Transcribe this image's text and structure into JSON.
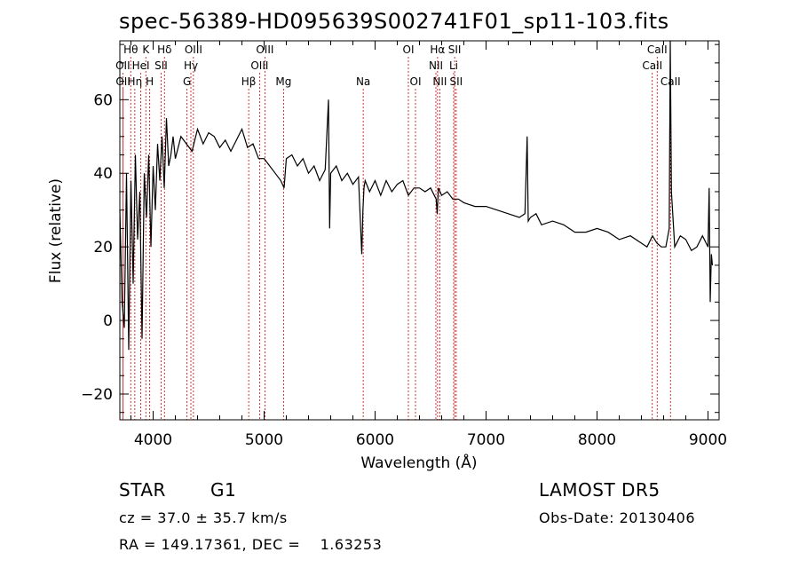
{
  "title": "spec-56389-HD095639S002741F01_sp11-103.fits",
  "info": {
    "class": "STAR",
    "subclass": "G1",
    "cz": "cz = 37.0 ± 35.7 km/s",
    "coords": "RA = 149.17361, DEC =    1.63253",
    "survey": "LAMOST DR5",
    "obs_date": "Obs-Date: 20130406"
  },
  "chart_data": {
    "type": "line",
    "title": "spec-56389-HD095639S002741F01_sp11-103.fits",
    "xlabel": "Wavelength (Å)",
    "ylabel": "Flux (relative)",
    "xlim": [
      3700,
      9100
    ],
    "ylim": [
      -27,
      76
    ],
    "x_ticks": [
      4000,
      5000,
      6000,
      7000,
      8000,
      9000
    ],
    "y_ticks": [
      -20,
      0,
      20,
      40,
      60
    ],
    "grid": false,
    "line_color": "#000000",
    "marker_color": "#cc0000",
    "spectrum": {
      "x": [
        3700,
        3720,
        3740,
        3760,
        3780,
        3800,
        3820,
        3840,
        3860,
        3880,
        3900,
        3920,
        3940,
        3960,
        3980,
        4000,
        4020,
        4040,
        4060,
        4080,
        4100,
        4120,
        4140,
        4160,
        4180,
        4200,
        4250,
        4300,
        4350,
        4400,
        4450,
        4500,
        4550,
        4600,
        4650,
        4700,
        4750,
        4800,
        4850,
        4900,
        4950,
        5000,
        5050,
        5100,
        5150,
        5180,
        5200,
        5250,
        5300,
        5350,
        5400,
        5450,
        5500,
        5550,
        5580,
        5590,
        5600,
        5650,
        5700,
        5750,
        5800,
        5850,
        5880,
        5890,
        5900,
        5910,
        5950,
        6000,
        6050,
        6100,
        6150,
        6200,
        6250,
        6300,
        6350,
        6400,
        6450,
        6500,
        6550,
        6560,
        6570,
        6600,
        6650,
        6700,
        6750,
        6800,
        6900,
        7000,
        7100,
        7200,
        7300,
        7350,
        7370,
        7380,
        7400,
        7450,
        7500,
        7600,
        7700,
        7800,
        7900,
        8000,
        8100,
        8200,
        8300,
        8400,
        8450,
        8500,
        8540,
        8580,
        8620,
        8650,
        8660,
        8670,
        8700,
        8750,
        8800,
        8850,
        8900,
        8950,
        9000,
        9010,
        9020,
        9030,
        9040
      ],
      "y": [
        30,
        5,
        -2,
        40,
        -8,
        38,
        10,
        45,
        22,
        35,
        -5,
        40,
        28,
        45,
        20,
        42,
        30,
        48,
        38,
        50,
        36,
        55,
        42,
        45,
        50,
        44,
        50,
        48,
        46,
        52,
        48,
        51,
        50,
        47,
        49,
        46,
        49,
        52,
        47,
        48,
        44,
        44,
        42,
        40,
        38,
        36,
        44,
        45,
        42,
        44,
        40,
        42,
        38,
        41,
        60,
        25,
        40,
        42,
        38,
        40,
        37,
        39,
        18,
        30,
        36,
        38,
        35,
        38,
        34,
        38,
        35,
        37,
        38,
        34,
        36,
        36,
        35,
        36,
        33,
        29,
        36,
        34,
        35,
        33,
        33,
        32,
        31,
        31,
        30,
        29,
        28,
        29,
        50,
        27,
        28,
        29,
        26,
        27,
        26,
        24,
        24,
        25,
        24,
        22,
        23,
        21,
        20,
        23,
        21,
        20,
        20,
        25,
        78,
        35,
        20,
        23,
        22,
        19,
        20,
        23,
        20,
        36,
        5,
        18,
        15
      ]
    },
    "lines": [
      {
        "name": "Hθ",
        "wave": 3798,
        "row": 0
      },
      {
        "name": "K",
        "wave": 3934,
        "row": 0
      },
      {
        "name": "Hδ",
        "wave": 4102,
        "row": 0
      },
      {
        "name": "OIII",
        "wave": 4363,
        "row": 0
      },
      {
        "name": "OIII",
        "wave": 5007,
        "row": 0
      },
      {
        "name": "OI",
        "wave": 6300,
        "row": 0
      },
      {
        "name": "Hα",
        "wave": 6563,
        "row": 0
      },
      {
        "name": "SII",
        "wave": 6717,
        "row": 0
      },
      {
        "name": "CaII",
        "wave": 8542,
        "row": 0
      },
      {
        "name": "OII",
        "wave": 3727,
        "row": 1
      },
      {
        "name": "HeI",
        "wave": 3889,
        "row": 1
      },
      {
        "name": "SII",
        "wave": 4072,
        "row": 1
      },
      {
        "name": "Hγ",
        "wave": 4340,
        "row": 1
      },
      {
        "name": "OIII",
        "wave": 4959,
        "row": 1
      },
      {
        "name": "NII",
        "wave": 6548,
        "row": 1
      },
      {
        "name": "Li",
        "wave": 6708,
        "row": 1
      },
      {
        "name": "CaII",
        "wave": 8498,
        "row": 1
      },
      {
        "name": "OII",
        "wave": 3729,
        "row": 2
      },
      {
        "name": "Hη",
        "wave": 3835,
        "row": 2
      },
      {
        "name": "H",
        "wave": 3969,
        "row": 2
      },
      {
        "name": "G",
        "wave": 4305,
        "row": 2
      },
      {
        "name": "Hβ",
        "wave": 4861,
        "row": 2
      },
      {
        "name": "Mg",
        "wave": 5175,
        "row": 2
      },
      {
        "name": "Na",
        "wave": 5893,
        "row": 2
      },
      {
        "name": "OI",
        "wave": 6364,
        "row": 2
      },
      {
        "name": "NII",
        "wave": 6583,
        "row": 2
      },
      {
        "name": "SII",
        "wave": 6731,
        "row": 2
      },
      {
        "name": "CaII",
        "wave": 8662,
        "row": 2
      }
    ]
  }
}
